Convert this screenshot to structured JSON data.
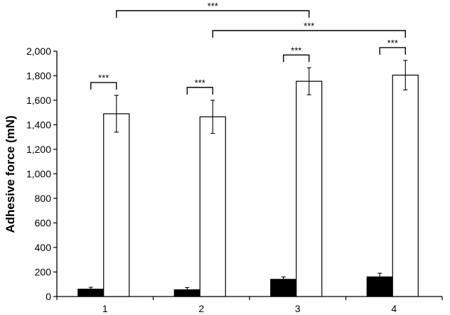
{
  "chart_data": {
    "type": "bar",
    "title": "",
    "xlabel": "",
    "ylabel": "Adhesive force (mN)",
    "ylim": [
      0,
      2000
    ],
    "yticks": [
      0,
      200,
      400,
      600,
      800,
      1000,
      1200,
      1400,
      1600,
      1800,
      2000
    ],
    "ytick_labels": [
      "0",
      "200",
      "400",
      "600",
      "800",
      "1,000",
      "1,200",
      "1,400",
      "1,600",
      "1,800",
      "2,000"
    ],
    "categories": [
      "1",
      "2",
      "3",
      "4"
    ],
    "grid": false,
    "legend": "none",
    "series": [
      {
        "color": "#000000",
        "values": [
          60,
          55,
          140,
          160
        ],
        "errors": [
          15,
          18,
          20,
          30
        ]
      },
      {
        "color": "#ffffff",
        "values": [
          1490,
          1465,
          1755,
          1805
        ],
        "errors": [
          150,
          135,
          110,
          120
        ]
      }
    ],
    "annotations": [
      {
        "text": "***",
        "from": [
          0,
          0
        ],
        "to": [
          0,
          1
        ]
      },
      {
        "text": "***",
        "from": [
          1,
          0
        ],
        "to": [
          1,
          1
        ]
      },
      {
        "text": "***",
        "from": [
          2,
          0
        ],
        "to": [
          2,
          1
        ]
      },
      {
        "text": "***",
        "from": [
          3,
          0
        ],
        "to": [
          3,
          1
        ]
      },
      {
        "text": "***",
        "from": [
          0,
          1
        ],
        "to": [
          2,
          1
        ]
      },
      {
        "text": "***",
        "from": [
          1,
          1
        ],
        "to": [
          3,
          1
        ]
      }
    ]
  }
}
